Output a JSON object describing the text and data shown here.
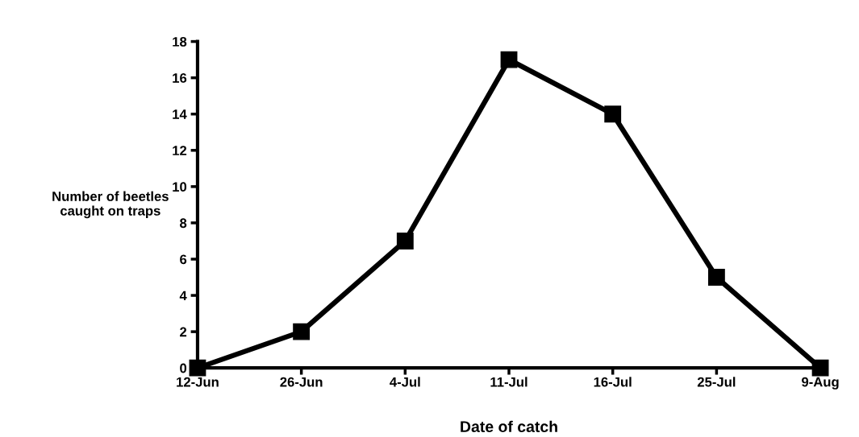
{
  "chart_data": {
    "type": "line",
    "xlabel": "Date of catch",
    "ylabel": "Number of beetles\ncaught on traps",
    "categories": [
      "12-Jun",
      "26-Jun",
      "4-Jul",
      "11-Jul",
      "16-Jul",
      "25-Jul",
      "9-Aug"
    ],
    "series": [
      {
        "color": "#000000",
        "values": [
          0,
          2,
          7,
          17,
          14,
          5,
          0
        ]
      }
    ],
    "ylim": [
      0,
      18
    ],
    "yticks": [
      0,
      2,
      4,
      6,
      8,
      10,
      12,
      14,
      16,
      18
    ],
    "grid": false,
    "legend": false,
    "marker": "square",
    "line_style": "solid"
  }
}
